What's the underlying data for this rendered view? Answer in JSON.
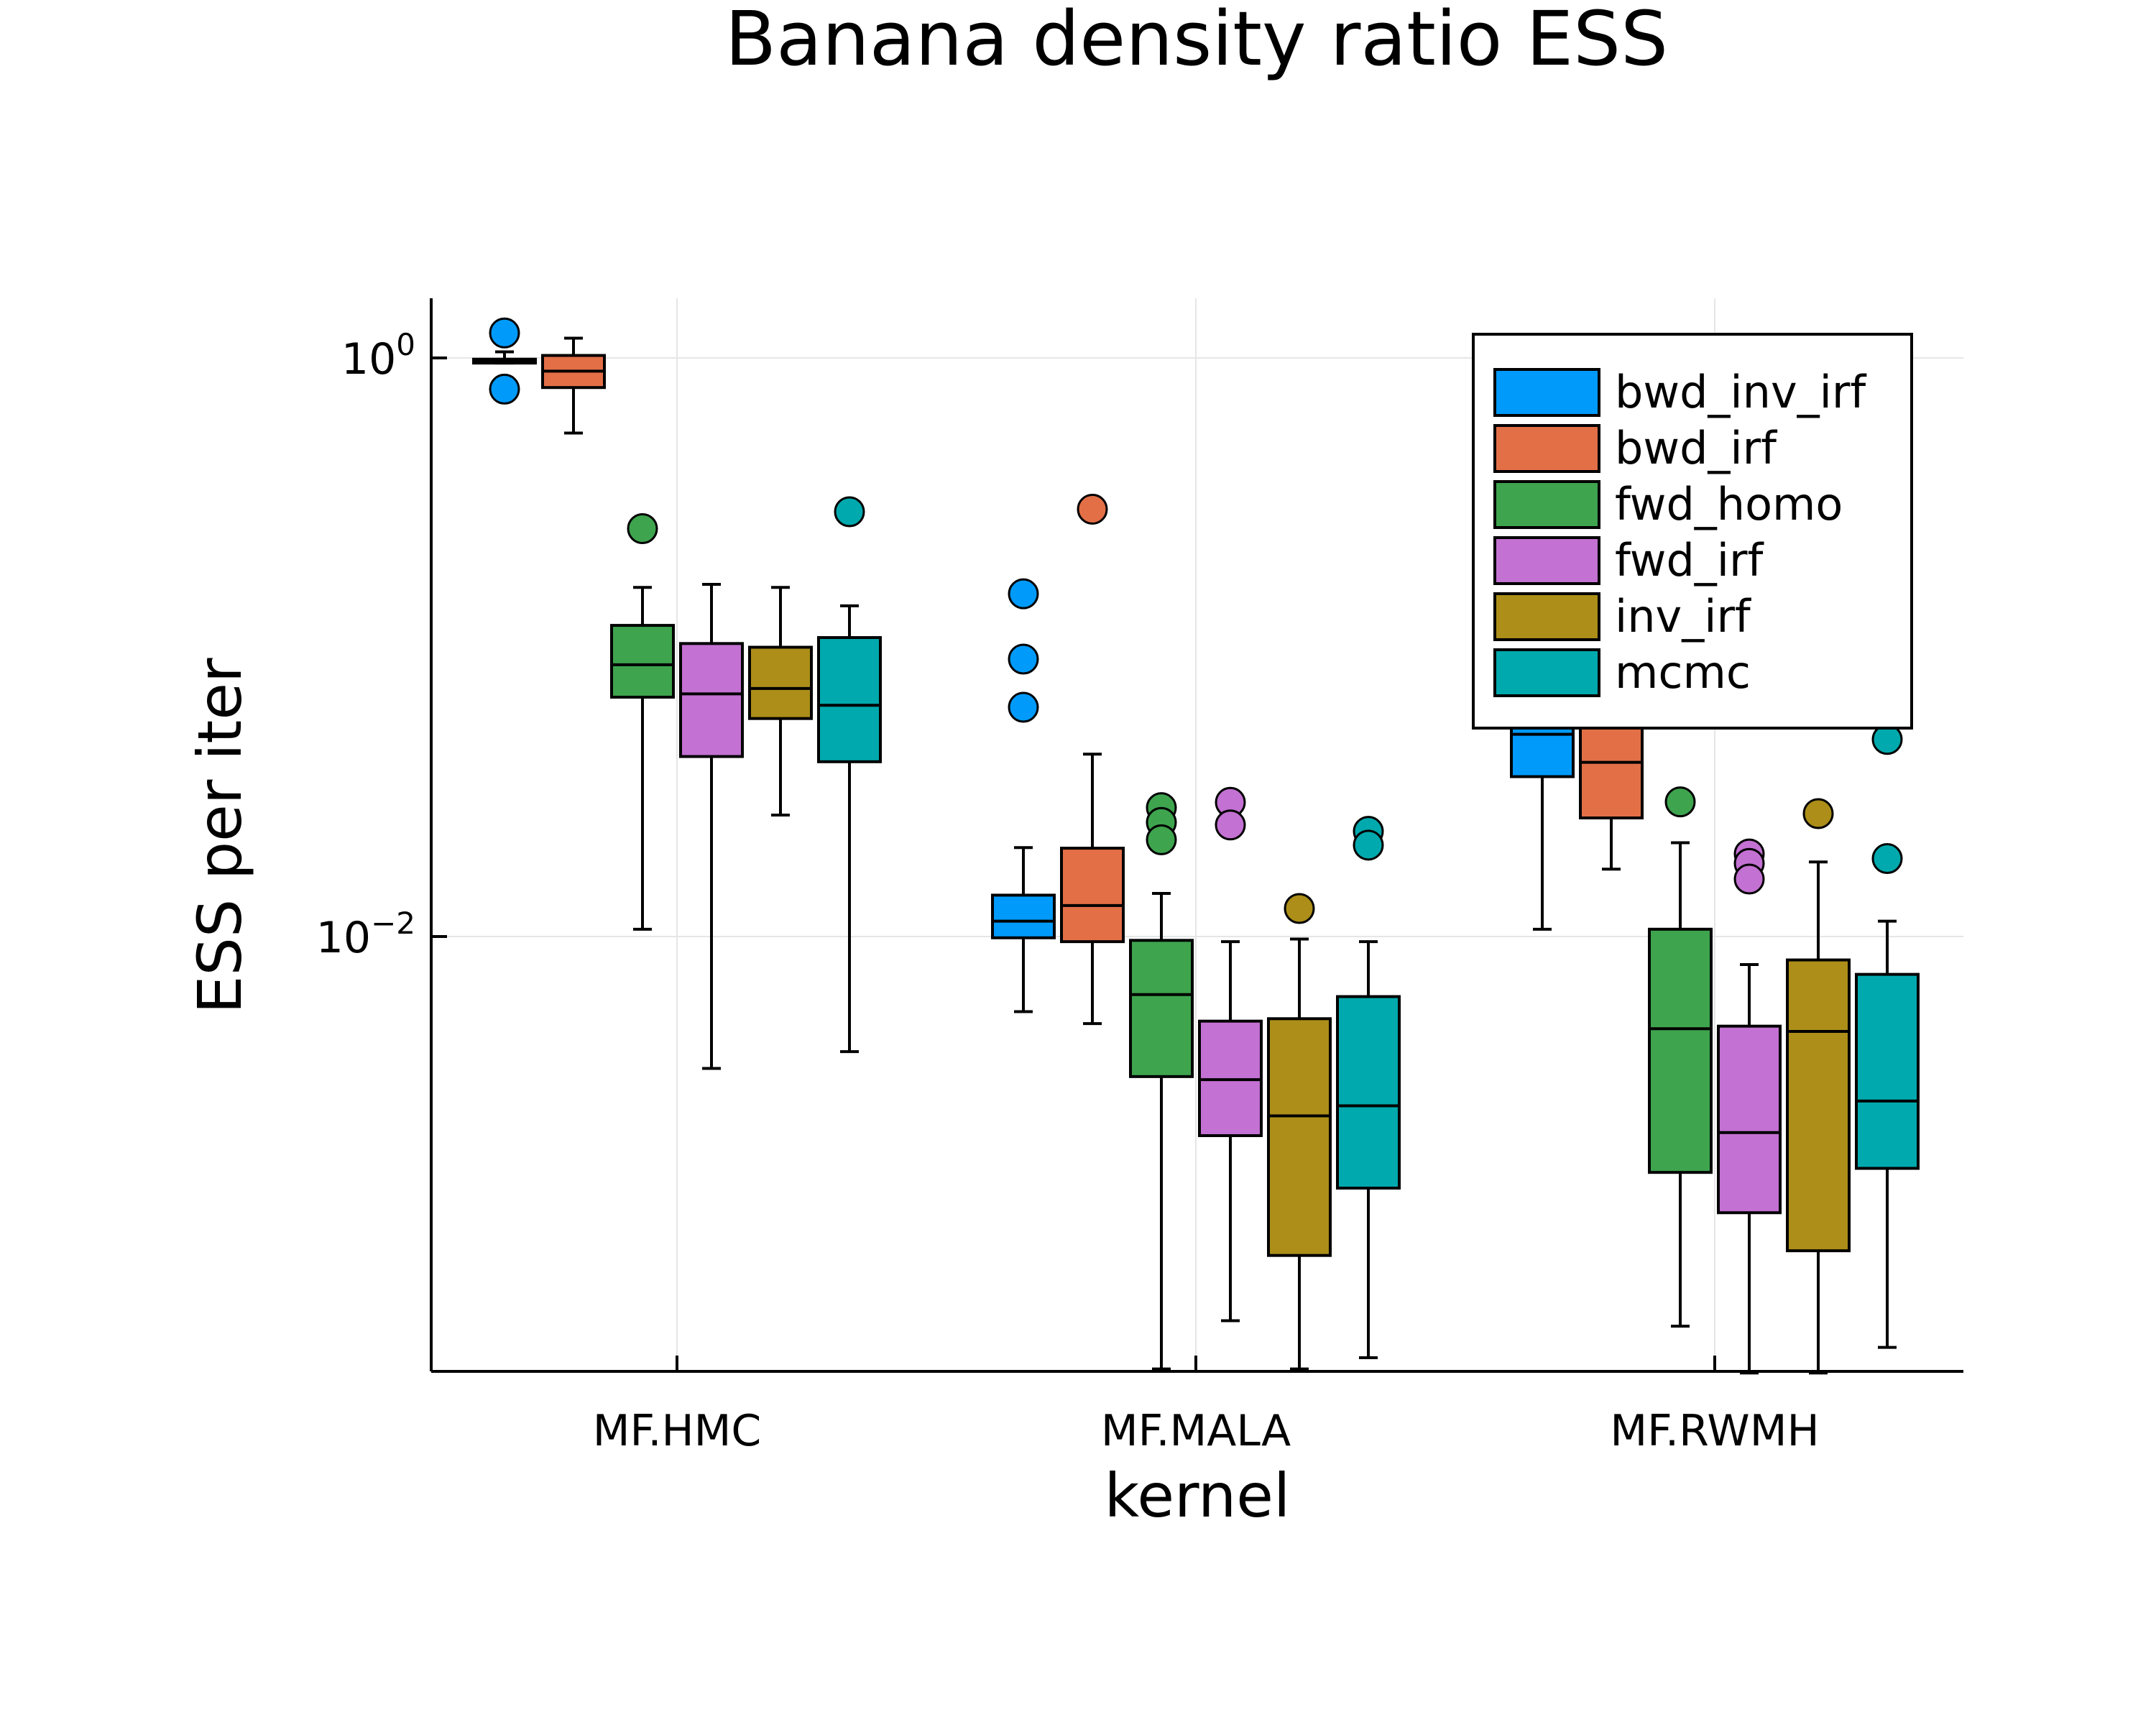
{
  "chart_data": {
    "type": "boxplot",
    "title": "Banana density ratio ESS",
    "xlabel": "kernel",
    "ylabel": "ESS per iter",
    "yscale": "log10",
    "ylim": [
      0.00031,
      1.5
    ],
    "ytick_labels": [
      {
        "value": 1,
        "base": "10",
        "exp": "0"
      },
      {
        "value": 0.01,
        "base": "10",
        "exp": "−2"
      }
    ],
    "grid": true,
    "legend_position": "top-right",
    "categories": [
      "MF.HMC",
      "MF.MALA",
      "MF.RWMH"
    ],
    "series": [
      {
        "name": "bwd_inv_irf",
        "color": "#009AFA",
        "boxes": [
          {
            "whisker_low": 0.96,
            "q1": 0.96,
            "median": 0.975,
            "q3": 0.99,
            "whisker_high": 1.05,
            "outliers": [
              1.22,
              0.78
            ]
          },
          {
            "whisker_low": 0.0055,
            "q1": 0.0099,
            "median": 0.0113,
            "q3": 0.0139,
            "whisker_high": 0.0203,
            "outliers": [
              0.153,
              0.091,
              0.062
            ]
          },
          {
            "whisker_low": 0.0106,
            "q1": 0.0357,
            "median": 0.05,
            "q3": 0.065,
            "whisker_high": 0.09,
            "outliers": []
          }
        ]
      },
      {
        "name": "bwd_irf",
        "color": "#E36F47",
        "boxes": [
          {
            "whisker_low": 0.55,
            "q1": 0.79,
            "median": 0.9,
            "q3": 1.02,
            "whisker_high": 1.17,
            "outliers": []
          },
          {
            "whisker_low": 0.005,
            "q1": 0.0096,
            "median": 0.0128,
            "q3": 0.0202,
            "whisker_high": 0.0427,
            "outliers": [
              0.3
            ]
          },
          {
            "whisker_low": 0.0171,
            "q1": 0.0257,
            "median": 0.04,
            "q3": 0.055,
            "whisker_high": 0.07,
            "outliers": []
          }
        ]
      },
      {
        "name": "fwd_homo",
        "color": "#3EA44E",
        "boxes": [
          {
            "whisker_low": 0.0106,
            "q1": 0.0672,
            "median": 0.087,
            "q3": 0.119,
            "whisker_high": 0.161,
            "outliers": [
              0.257
            ]
          },
          {
            "whisker_low": 0.00032,
            "q1": 0.00328,
            "median": 0.0063,
            "q3": 0.0097,
            "whisker_high": 0.0141,
            "outliers": [
              0.0279,
              0.0248,
              0.0216
            ]
          },
          {
            "whisker_low": 0.00045,
            "q1": 0.00153,
            "median": 0.0048,
            "q3": 0.0106,
            "whisker_high": 0.0211,
            "outliers": [
              0.0292
            ]
          }
        ]
      },
      {
        "name": "fwd_irf",
        "color": "#C371D2",
        "boxes": [
          {
            "whisker_low": 0.0035,
            "q1": 0.0419,
            "median": 0.069,
            "q3": 0.103,
            "whisker_high": 0.165,
            "outliers": []
          },
          {
            "whisker_low": 0.00047,
            "q1": 0.00205,
            "median": 0.0032,
            "q3": 0.0051,
            "whisker_high": 0.0096,
            "outliers": [
              0.0291,
              0.0243
            ]
          },
          {
            "whisker_low": 0.00031,
            "q1": 0.00111,
            "median": 0.0021,
            "q3": 0.0049,
            "whisker_high": 0.008,
            "outliers": [
              0.0193,
              0.0179,
              0.0158
            ]
          }
        ]
      },
      {
        "name": "inv_irf",
        "color": "#AC8E18",
        "boxes": [
          {
            "whisker_low": 0.0263,
            "q1": 0.0567,
            "median": 0.072,
            "q3": 0.1,
            "whisker_high": 0.161,
            "outliers": []
          },
          {
            "whisker_low": 0.00032,
            "q1": 0.00079,
            "median": 0.0024,
            "q3": 0.0052,
            "whisker_high": 0.0098,
            "outliers": [
              0.0125
            ]
          },
          {
            "whisker_low": 0.00031,
            "q1": 0.00082,
            "median": 0.0047,
            "q3": 0.0083,
            "whisker_high": 0.0181,
            "outliers": [
              0.0266
            ]
          }
        ]
      },
      {
        "name": "mcmc",
        "color": "#00A9AD",
        "boxes": [
          {
            "whisker_low": 0.004,
            "q1": 0.0402,
            "median": 0.063,
            "q3": 0.108,
            "whisker_high": 0.139,
            "outliers": [
              0.294
            ]
          },
          {
            "whisker_low": 0.00035,
            "q1": 0.00135,
            "median": 0.0026,
            "q3": 0.0062,
            "whisker_high": 0.0096,
            "outliers": [
              0.0231,
              0.0207
            ]
          },
          {
            "whisker_low": 0.00038,
            "q1": 0.00158,
            "median": 0.0027,
            "q3": 0.0074,
            "whisker_high": 0.0113,
            "outliers": [
              0.048,
              0.0186
            ]
          }
        ]
      }
    ]
  }
}
